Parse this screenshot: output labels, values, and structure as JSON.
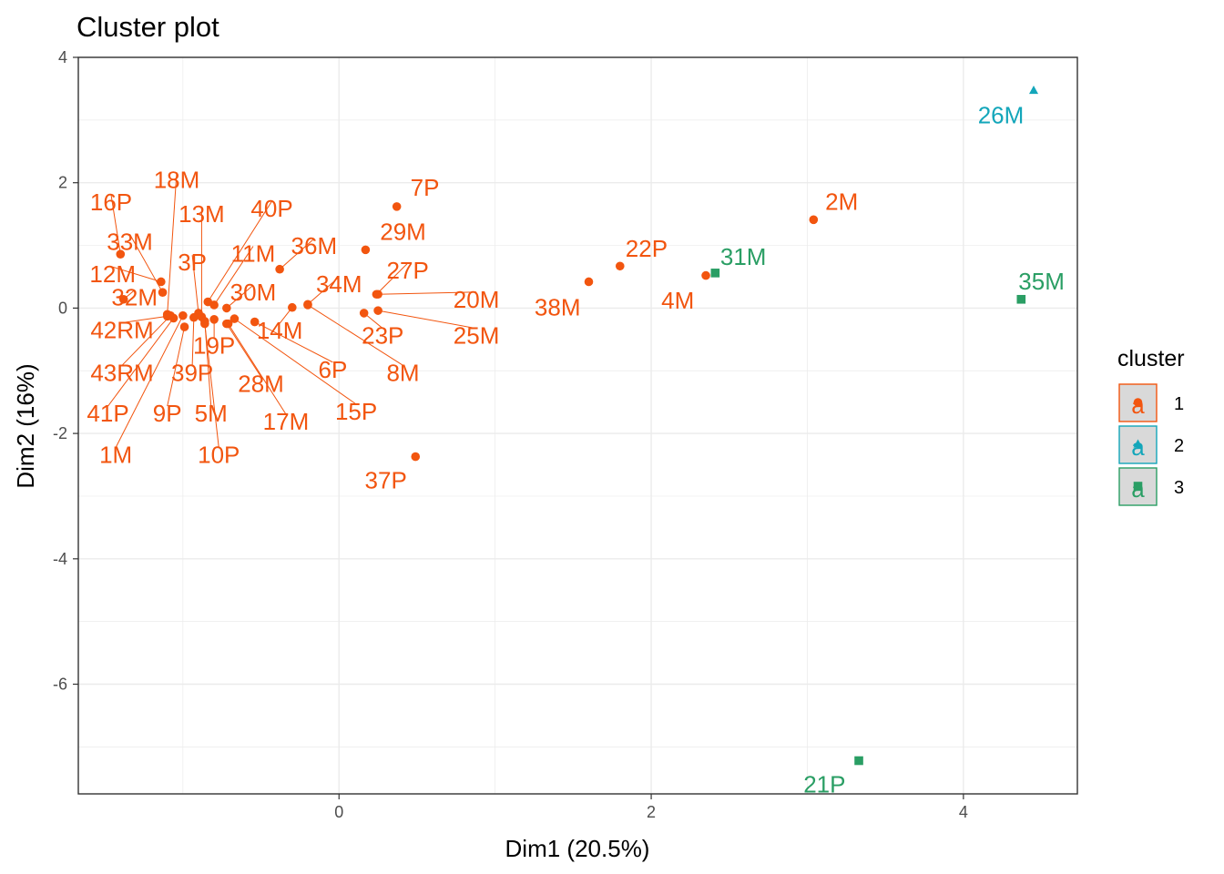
{
  "chart_data": {
    "type": "scatter",
    "title": "Cluster plot",
    "xlabel": "Dim1 (20.5%)",
    "ylabel": "Dim2 (16%)",
    "xlim": [
      -1.67,
      4.73
    ],
    "ylim": [
      -7.75,
      4.0
    ],
    "xticks": [
      0,
      2,
      4
    ],
    "yticks": [
      4,
      2,
      0,
      -2,
      -4,
      -6
    ],
    "grid": true,
    "legend": {
      "title": "cluster",
      "placement": "right",
      "entries": [
        {
          "label": "1",
          "color": "#F2550F",
          "shape": "circle"
        },
        {
          "label": "2",
          "color": "#13A6BA",
          "shape": "triangle"
        },
        {
          "label": "3",
          "color": "#2A9E64",
          "shape": "square"
        }
      ]
    },
    "points": [
      {
        "label": "26M",
        "cluster": "2",
        "x": 4.45,
        "y": 3.47,
        "lx": 4.24,
        "ly": 3.08
      },
      {
        "label": "31M",
        "cluster": "3",
        "x": 2.41,
        "y": 0.56,
        "lx": 2.59,
        "ly": 0.82
      },
      {
        "label": "35M",
        "cluster": "3",
        "x": 4.37,
        "y": 0.14,
        "lx": 4.5,
        "ly": 0.43
      },
      {
        "label": "21P",
        "cluster": "3",
        "x": 3.33,
        "y": -7.22,
        "lx": 3.11,
        "ly": -7.6
      },
      {
        "label": "2M",
        "cluster": "1",
        "x": 3.04,
        "y": 1.41,
        "lx": 3.22,
        "ly": 1.7
      },
      {
        "label": "22P",
        "cluster": "1",
        "x": 1.8,
        "y": 0.67,
        "lx": 1.97,
        "ly": 0.95
      },
      {
        "label": "4M",
        "cluster": "1",
        "x": 2.35,
        "y": 0.52,
        "lx": 2.17,
        "ly": 0.12
      },
      {
        "label": "38M",
        "cluster": "1",
        "x": 1.6,
        "y": 0.42,
        "lx": 1.4,
        "ly": 0.01
      },
      {
        "label": "7P",
        "cluster": "1",
        "x": 0.37,
        "y": 1.62,
        "lx": 0.55,
        "ly": 1.92
      },
      {
        "label": "29M",
        "cluster": "1",
        "x": 0.17,
        "y": 0.93,
        "lx": 0.41,
        "ly": 1.22
      },
      {
        "label": "27P",
        "cluster": "1",
        "x": 0.24,
        "y": 0.22,
        "lx": 0.44,
        "ly": 0.6,
        "leader": true
      },
      {
        "label": "20M",
        "cluster": "1",
        "x": 0.25,
        "y": 0.22,
        "lx": 0.88,
        "ly": 0.14,
        "leader": true
      },
      {
        "label": "25M",
        "cluster": "1",
        "x": 0.25,
        "y": -0.04,
        "lx": 0.88,
        "ly": -0.44,
        "leader": true
      },
      {
        "label": "23P",
        "cluster": "1",
        "x": 0.16,
        "y": -0.08,
        "lx": 0.28,
        "ly": -0.44,
        "leader": true
      },
      {
        "label": "8M",
        "cluster": "1",
        "x": -0.2,
        "y": 0.05,
        "lx": 0.41,
        "ly": -1.03,
        "leader": true
      },
      {
        "label": "34M",
        "cluster": "1",
        "x": -0.2,
        "y": 0.06,
        "lx": 0.0,
        "ly": 0.38,
        "leader": true
      },
      {
        "label": "36M",
        "cluster": "1",
        "x": -0.38,
        "y": 0.62,
        "lx": -0.16,
        "ly": 0.99,
        "leader": true
      },
      {
        "label": "14M",
        "cluster": "1",
        "x": -0.3,
        "y": 0.01,
        "lx": -0.38,
        "ly": -0.36,
        "leader": true
      },
      {
        "label": "6P",
        "cluster": "1",
        "x": -0.54,
        "y": -0.22,
        "lx": -0.04,
        "ly": -0.98,
        "leader": true
      },
      {
        "label": "15P",
        "cluster": "1",
        "x": -0.67,
        "y": -0.17,
        "lx": 0.11,
        "ly": -1.65,
        "leader": true
      },
      {
        "label": "17M",
        "cluster": "1",
        "x": -0.71,
        "y": -0.25,
        "lx": -0.34,
        "ly": -1.81,
        "leader": true
      },
      {
        "label": "28M",
        "cluster": "1",
        "x": -0.72,
        "y": -0.25,
        "lx": -0.5,
        "ly": -1.21,
        "leader": true
      },
      {
        "label": "19P",
        "cluster": "1",
        "x": -0.8,
        "y": -0.18,
        "lx": -0.8,
        "ly": -0.6,
        "leader": true
      },
      {
        "label": "30M",
        "cluster": "1",
        "x": -0.72,
        "y": 0.0,
        "lx": -0.55,
        "ly": 0.25,
        "leader": true
      },
      {
        "label": "11M",
        "cluster": "1",
        "x": -0.8,
        "y": 0.05,
        "lx": -0.55,
        "ly": 0.87,
        "leader": true
      },
      {
        "label": "40P",
        "cluster": "1",
        "x": -0.84,
        "y": 0.1,
        "lx": -0.43,
        "ly": 1.59,
        "leader": true
      },
      {
        "label": "13M",
        "cluster": "1",
        "x": -0.88,
        "y": -0.14,
        "lx": -0.88,
        "ly": 1.5,
        "leader": true
      },
      {
        "label": "3P",
        "cluster": "1",
        "x": -0.9,
        "y": -0.08,
        "lx": -0.94,
        "ly": 0.73,
        "leader": true
      },
      {
        "label": "18M",
        "cluster": "1",
        "x": -1.1,
        "y": -0.1,
        "lx": -1.04,
        "ly": 2.05,
        "leader": true
      },
      {
        "label": "33M",
        "cluster": "1",
        "x": -1.13,
        "y": 0.25,
        "lx": -1.34,
        "ly": 1.06,
        "leader": true
      },
      {
        "label": "16P",
        "cluster": "1",
        "x": -1.4,
        "y": 0.86,
        "lx": -1.46,
        "ly": 1.69,
        "leader": true
      },
      {
        "label": "12M",
        "cluster": "1",
        "x": -1.14,
        "y": 0.42,
        "lx": -1.45,
        "ly": 0.54,
        "leader": true
      },
      {
        "label": "32M",
        "cluster": "1",
        "x": -1.38,
        "y": 0.14,
        "lx": -1.31,
        "ly": 0.17,
        "leader": true
      },
      {
        "label": "42RM",
        "cluster": "1",
        "x": -1.1,
        "y": -0.13,
        "lx": -1.39,
        "ly": -0.35,
        "leader": true
      },
      {
        "label": "43RM",
        "cluster": "1",
        "x": -1.08,
        "y": -0.12,
        "lx": -1.39,
        "ly": -1.03,
        "leader": true
      },
      {
        "label": "39P",
        "cluster": "1",
        "x": -0.93,
        "y": -0.15,
        "lx": -0.94,
        "ly": -1.03,
        "leader": true
      },
      {
        "label": "41P",
        "cluster": "1",
        "x": -1.06,
        "y": -0.16,
        "lx": -1.48,
        "ly": -1.68,
        "leader": true
      },
      {
        "label": "9P",
        "cluster": "1",
        "x": -0.99,
        "y": -0.3,
        "lx": -1.1,
        "ly": -1.68,
        "leader": true
      },
      {
        "label": "5M",
        "cluster": "1",
        "x": -0.86,
        "y": -0.21,
        "lx": -0.82,
        "ly": -1.68,
        "leader": true
      },
      {
        "label": "1M",
        "cluster": "1",
        "x": -1.0,
        "y": -0.12,
        "lx": -1.43,
        "ly": -2.34,
        "leader": true
      },
      {
        "label": "10P",
        "cluster": "1",
        "x": -0.86,
        "y": -0.25,
        "lx": -0.77,
        "ly": -2.34,
        "leader": true
      },
      {
        "label": "37P",
        "cluster": "1",
        "x": 0.49,
        "y": -2.37,
        "lx": 0.3,
        "ly": -2.75
      }
    ]
  }
}
